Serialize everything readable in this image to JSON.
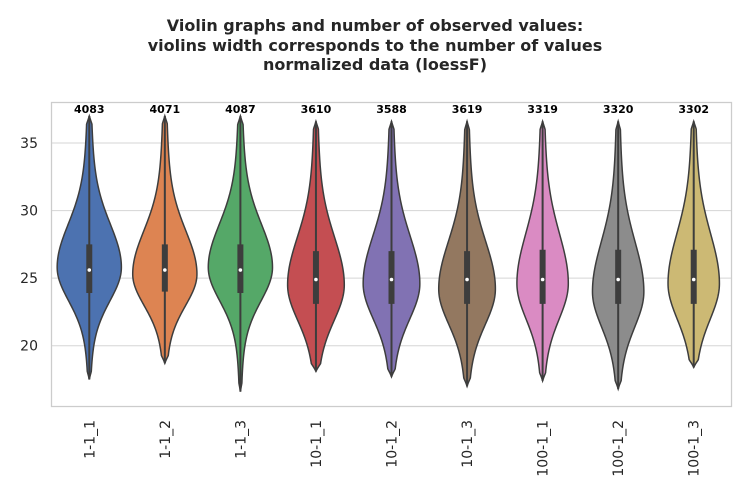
{
  "chart_data": {
    "type": "violin",
    "title_lines": [
      "Violin graphs and number of observed values:",
      "violins width corresponds to the number of values",
      "normalized data (loessF)"
    ],
    "xlabel": "",
    "ylabel": "",
    "ylim": [
      15.5,
      38.0
    ],
    "yticks": [
      20,
      25,
      30,
      35
    ],
    "grid": true,
    "categories": [
      "1-1_1",
      "1-1_2",
      "1-1_3",
      "10-1_1",
      "10-1_2",
      "10-1_3",
      "100-1_1",
      "100-1_2",
      "100-1_3"
    ],
    "counts": [
      "4083",
      "4071",
      "4087",
      "3610",
      "3588",
      "3619",
      "3319",
      "3320",
      "3302"
    ],
    "colors": [
      "#4c72b0",
      "#dd8452",
      "#55a868",
      "#c44e52",
      "#8172b3",
      "#937860",
      "#da8bc3",
      "#8c8c8c",
      "#ccb974"
    ],
    "series": [
      {
        "min": 17.5,
        "max": 37.0,
        "q1": 23.9,
        "median": 25.6,
        "q3": 27.5,
        "peak": 25.8,
        "halfwidth": 0.85
      },
      {
        "min": 18.7,
        "max": 37.0,
        "q1": 24.0,
        "median": 25.6,
        "q3": 27.5,
        "peak": 25.3,
        "halfwidth": 0.85
      },
      {
        "min": 16.6,
        "max": 37.0,
        "q1": 23.9,
        "median": 25.6,
        "q3": 27.5,
        "peak": 25.8,
        "halfwidth": 0.85
      },
      {
        "min": 18.1,
        "max": 36.6,
        "q1": 23.1,
        "median": 24.9,
        "q3": 27.0,
        "peak": 24.5,
        "halfwidth": 0.75
      },
      {
        "min": 17.7,
        "max": 36.6,
        "q1": 23.1,
        "median": 24.9,
        "q3": 27.0,
        "peak": 24.6,
        "halfwidth": 0.75
      },
      {
        "min": 17.0,
        "max": 36.6,
        "q1": 23.1,
        "median": 24.9,
        "q3": 27.0,
        "peak": 24.2,
        "halfwidth": 0.75
      },
      {
        "min": 17.4,
        "max": 36.6,
        "q1": 23.1,
        "median": 24.9,
        "q3": 27.1,
        "peak": 24.6,
        "halfwidth": 0.68
      },
      {
        "min": 16.8,
        "max": 36.6,
        "q1": 23.1,
        "median": 24.9,
        "q3": 27.1,
        "peak": 24.0,
        "halfwidth": 0.68
      },
      {
        "min": 18.4,
        "max": 36.6,
        "q1": 23.1,
        "median": 24.9,
        "q3": 27.1,
        "peak": 24.6,
        "halfwidth": 0.68
      }
    ]
  }
}
